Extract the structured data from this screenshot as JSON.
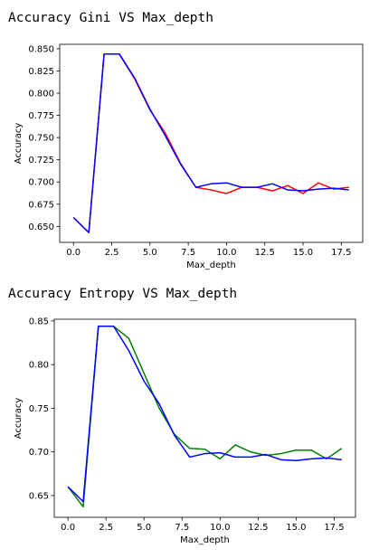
{
  "chart_data": [
    {
      "type": "line",
      "title": "Accuracy Gini VS Max_depth",
      "xlabel": "Max_depth",
      "ylabel": "Accuracy",
      "xlim": [
        -0.9,
        18.9
      ],
      "ylim": [
        0.632,
        0.855
      ],
      "xticks": [
        0.0,
        2.5,
        5.0,
        7.5,
        10.0,
        12.5,
        15.0,
        17.5
      ],
      "xtick_labels": [
        "0.0",
        "2.5",
        "5.0",
        "7.5",
        "10.0",
        "12.5",
        "15.0",
        "17.5"
      ],
      "yticks": [
        0.65,
        0.675,
        0.7,
        0.725,
        0.75,
        0.775,
        0.8,
        0.825,
        0.85
      ],
      "ytick_labels": [
        "0.650",
        "0.675",
        "0.700",
        "0.725",
        "0.750",
        "0.775",
        "0.800",
        "0.825",
        "0.850"
      ],
      "x": [
        0,
        1,
        2,
        3,
        4,
        5,
        6,
        7,
        8,
        9,
        10,
        11,
        12,
        13,
        14,
        15,
        16,
        17,
        18
      ],
      "series": [
        {
          "color": "#ff0000",
          "values": [
            0.66,
            0.643,
            0.844,
            0.844,
            0.816,
            0.781,
            0.755,
            0.721,
            0.694,
            0.691,
            0.687,
            0.694,
            0.694,
            0.69,
            0.696,
            0.687,
            0.699,
            0.692,
            0.694
          ]
        },
        {
          "color": "#0000ff",
          "values": [
            0.66,
            0.643,
            0.844,
            0.844,
            0.817,
            0.782,
            0.752,
            0.72,
            0.694,
            0.698,
            0.699,
            0.694,
            0.694,
            0.698,
            0.691,
            0.69,
            0.692,
            0.693,
            0.691
          ]
        }
      ]
    },
    {
      "type": "line",
      "title": "Accuracy Entropy VS Max_depth",
      "xlabel": "Max_depth",
      "ylabel": "Accuracy",
      "xlim": [
        -0.9,
        18.9
      ],
      "ylim": [
        0.625,
        0.852
      ],
      "xticks": [
        0.0,
        2.5,
        5.0,
        7.5,
        10.0,
        12.5,
        15.0,
        17.5
      ],
      "xtick_labels": [
        "0.0",
        "2.5",
        "5.0",
        "7.5",
        "10.0",
        "12.5",
        "15.0",
        "17.5"
      ],
      "yticks": [
        0.65,
        0.7,
        0.75,
        0.8,
        0.85
      ],
      "ytick_labels": [
        "0.65",
        "0.70",
        "0.75",
        "0.80",
        "0.85"
      ],
      "x": [
        0,
        1,
        2,
        3,
        4,
        5,
        6,
        7,
        8,
        9,
        10,
        11,
        12,
        13,
        14,
        15,
        16,
        17,
        18
      ],
      "series": [
        {
          "color": "#008000",
          "values": [
            0.66,
            0.637,
            0.844,
            0.844,
            0.83,
            0.79,
            0.75,
            0.72,
            0.704,
            0.703,
            0.692,
            0.708,
            0.7,
            0.696,
            0.698,
            0.702,
            0.702,
            0.692,
            0.704
          ]
        },
        {
          "color": "#0000ff",
          "values": [
            0.66,
            0.643,
            0.844,
            0.844,
            0.816,
            0.781,
            0.755,
            0.719,
            0.694,
            0.698,
            0.699,
            0.694,
            0.694,
            0.697,
            0.691,
            0.69,
            0.692,
            0.693,
            0.691
          ]
        }
      ]
    }
  ]
}
